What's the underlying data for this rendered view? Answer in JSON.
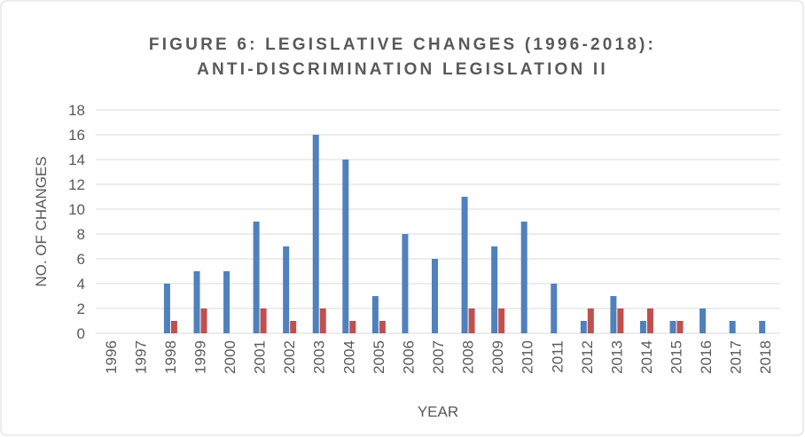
{
  "chart_data": {
    "type": "bar",
    "title": [
      "FIGURE 6: LEGISLATIVE CHANGES (1996-2018):",
      "ANTI-DISCRIMINATION LEGISLATION II"
    ],
    "x_label": "YEAR",
    "y_label": "NO. OF CHANGES",
    "categories": [
      "1996",
      "1997",
      "1998",
      "1999",
      "2000",
      "2001",
      "2002",
      "2003",
      "2004",
      "2005",
      "2006",
      "2007",
      "2008",
      "2009",
      "2010",
      "2011",
      "2012",
      "2013",
      "2014",
      "2015",
      "2016",
      "2017",
      "2018"
    ],
    "series": [
      {
        "color": "#4f81bd",
        "values": [
          0,
          0,
          4,
          5,
          5,
          9,
          7,
          16,
          14,
          3,
          8,
          6,
          11,
          7,
          9,
          4,
          1,
          3,
          1,
          1,
          2,
          1,
          1
        ]
      },
      {
        "color": "#c0504d",
        "values": [
          0,
          0,
          1,
          2,
          0,
          2,
          1,
          2,
          1,
          1,
          0,
          0,
          2,
          2,
          0,
          0,
          2,
          2,
          2,
          1,
          0,
          0,
          0
        ]
      }
    ],
    "ylim": [
      0,
      18
    ],
    "yticks": [
      0,
      2,
      4,
      6,
      8,
      10,
      12,
      14,
      16,
      18
    ],
    "grid": true
  }
}
